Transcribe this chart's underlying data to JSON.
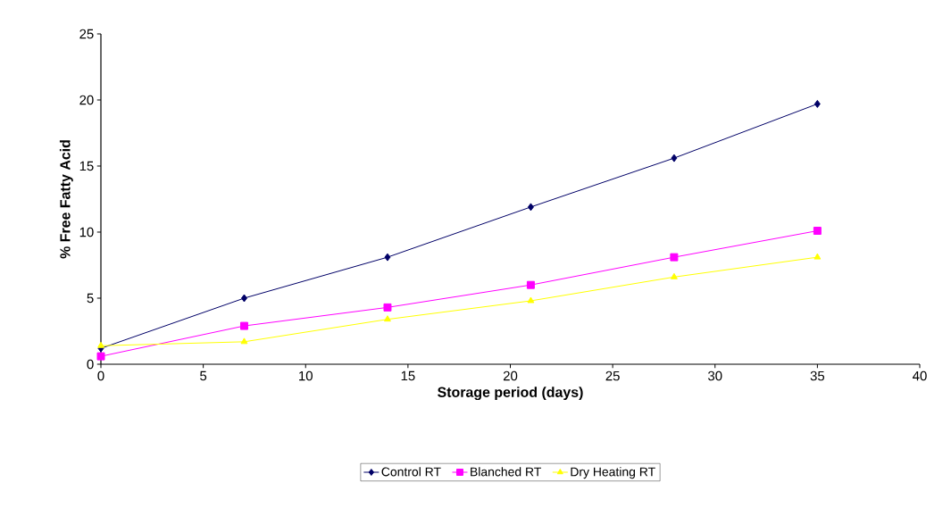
{
  "chart_data": {
    "type": "line",
    "xlabel": "Storage period (days)",
    "ylabel": "% Free Fatty Acid",
    "x": [
      0,
      7,
      14,
      21,
      28,
      35
    ],
    "series": [
      {
        "name": "Control RT",
        "color": "#000066",
        "marker": "diamond",
        "values": [
          1.2,
          5.0,
          8.1,
          11.9,
          15.6,
          19.7
        ]
      },
      {
        "name": "Blanched RT",
        "color": "#ff00ff",
        "marker": "square",
        "values": [
          0.6,
          2.9,
          4.3,
          6.0,
          8.1,
          10.1
        ]
      },
      {
        "name": "Dry Heating RT",
        "color": "#ffff00",
        "marker": "triangle",
        "values": [
          1.4,
          1.7,
          3.4,
          4.8,
          6.6,
          8.1
        ]
      }
    ],
    "xlim": [
      0,
      40
    ],
    "xticks": [
      0,
      5,
      10,
      15,
      20,
      25,
      30,
      35,
      40
    ],
    "ylim": [
      0,
      25
    ],
    "yticks": [
      0,
      5,
      10,
      15,
      20,
      25
    ],
    "grid": false,
    "legend": "bottom",
    "line_style": "solid"
  }
}
